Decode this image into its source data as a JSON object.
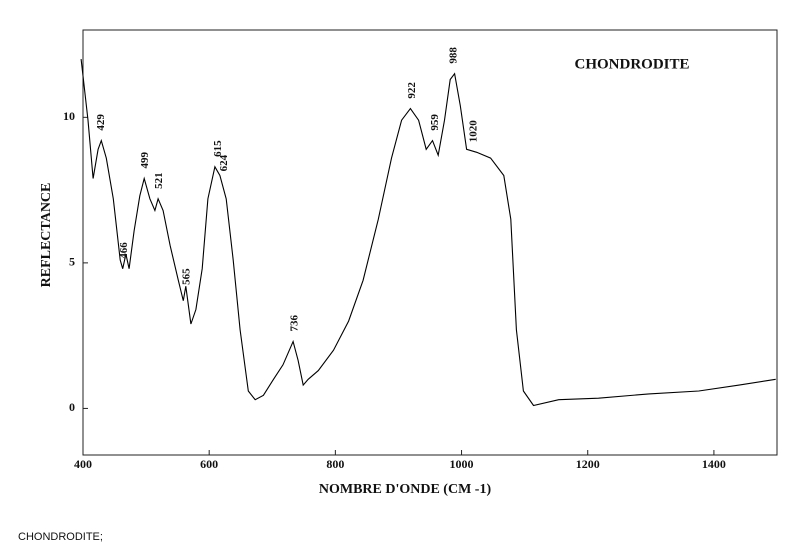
{
  "chart_data": {
    "type": "line",
    "title": "CHONDRODITE",
    "x_label": "NOMBRE D'ONDE (CM -1)",
    "y_label": "REFLECTANCE",
    "caption": "CHONDRODITE;",
    "color": "#000000",
    "xlim": [
      400,
      1500
    ],
    "ylim": [
      -1.6,
      13
    ],
    "xticks": [
      400,
      600,
      800,
      1000,
      1200,
      1400
    ],
    "yticks": [
      0,
      5,
      10
    ],
    "x": [
      397,
      408,
      416,
      424,
      429,
      437,
      448,
      459,
      463,
      468,
      473,
      481,
      490,
      497,
      506,
      514,
      519,
      527,
      538,
      551,
      559,
      563,
      571,
      579,
      589,
      598,
      609,
      617,
      627,
      638,
      649,
      662,
      673,
      686,
      702,
      717,
      733,
      741,
      749,
      757,
      773,
      797,
      821,
      844,
      868,
      889,
      905,
      919,
      932,
      944,
      954,
      963,
      973,
      982,
      989,
      998,
      1008,
      1024,
      1046,
      1067,
      1078,
      1087,
      1098,
      1114,
      1154,
      1217,
      1297,
      1376,
      1440,
      1498
    ],
    "values": [
      12,
      9.9,
      7.9,
      8.9,
      9.2,
      8.6,
      7.2,
      5.1,
      4.8,
      5.3,
      4.8,
      6.1,
      7.3,
      7.9,
      7.2,
      6.8,
      7.2,
      6.8,
      5.6,
      4.4,
      3.7,
      4.2,
      2.9,
      3.4,
      4.8,
      7.2,
      8.3,
      8.0,
      7.2,
      5.1,
      2.7,
      0.6,
      0.3,
      0.45,
      1.0,
      1.5,
      2.3,
      1.65,
      0.8,
      1.0,
      1.3,
      2.0,
      3.0,
      4.4,
      6.5,
      8.6,
      9.9,
      10.3,
      9.9,
      8.9,
      9.2,
      8.7,
      9.9,
      11.3,
      11.5,
      10.4,
      8.9,
      8.8,
      8.6,
      8.0,
      6.5,
      2.7,
      0.6,
      0.1,
      0.3,
      0.35,
      0.5,
      0.6,
      0.8,
      1.0
    ],
    "peaks": [
      {
        "x": 429,
        "y": 9.2
      },
      {
        "x": 466,
        "y": 4.8
      },
      {
        "x": 499,
        "y": 7.9
      },
      {
        "x": 521,
        "y": 7.2
      },
      {
        "x": 565,
        "y": 3.9
      },
      {
        "x": 615,
        "y": 8.3
      },
      {
        "x": 624,
        "y": 7.8
      },
      {
        "x": 736,
        "y": 2.3
      },
      {
        "x": 922,
        "y": 10.3
      },
      {
        "x": 959,
        "y": 9.2
      },
      {
        "x": 988,
        "y": 11.5
      },
      {
        "x": 1020,
        "y": 8.8
      }
    ]
  }
}
